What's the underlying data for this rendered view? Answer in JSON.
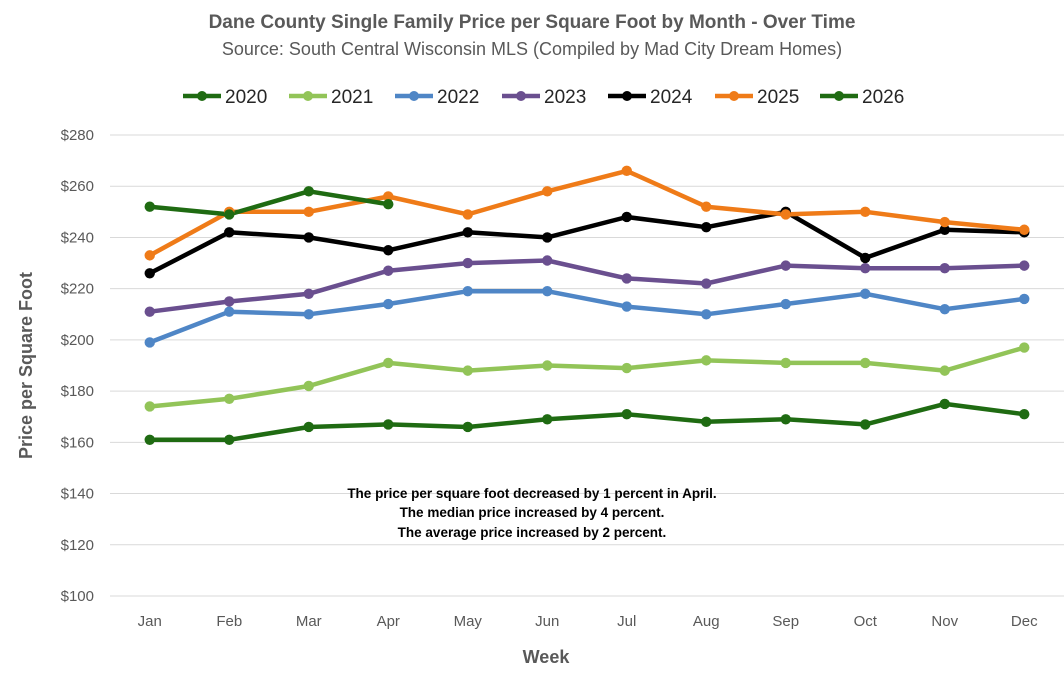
{
  "chart_data": {
    "type": "line",
    "title": "Dane County Single Family Price per Square Foot by Month - Over Time",
    "subtitle": "Source: South Central Wisconsin MLS (Compiled by Mad City Dream Homes)",
    "xlabel": "Week",
    "ylabel": "Price per Square Foot",
    "categories": [
      "Jan",
      "Feb",
      "Mar",
      "Apr",
      "May",
      "Jun",
      "Jul",
      "Aug",
      "Sep",
      "Oct",
      "Nov",
      "Dec"
    ],
    "ylim": [
      100,
      280
    ],
    "yticks": [
      100,
      120,
      140,
      160,
      180,
      200,
      220,
      240,
      260,
      280
    ],
    "ytick_labels": [
      "$100",
      "$120",
      "$140",
      "$160",
      "$180",
      "$200",
      "$220",
      "$240",
      "$260",
      "$280"
    ],
    "grid": true,
    "legend_position": "top",
    "series": [
      {
        "name": "2020",
        "color": "#1f6b12",
        "values": [
          161,
          161,
          166,
          167,
          166,
          169,
          171,
          168,
          169,
          167,
          175,
          171
        ]
      },
      {
        "name": "2021",
        "color": "#92c458",
        "values": [
          174,
          177,
          182,
          191,
          188,
          190,
          189,
          192,
          191,
          191,
          188,
          197
        ]
      },
      {
        "name": "2022",
        "color": "#4f86c6",
        "values": [
          199,
          211,
          210,
          214,
          219,
          219,
          213,
          210,
          214,
          218,
          212,
          216
        ]
      },
      {
        "name": "2023",
        "color": "#6a4f8f",
        "values": [
          211,
          215,
          218,
          227,
          230,
          231,
          224,
          222,
          229,
          228,
          228,
          229
        ]
      },
      {
        "name": "2024",
        "color": "#000000",
        "values": [
          226,
          242,
          240,
          235,
          242,
          240,
          248,
          244,
          250,
          232,
          243,
          242
        ]
      },
      {
        "name": "2025",
        "color": "#ef7b18",
        "values": [
          233,
          250,
          250,
          256,
          249,
          258,
          266,
          252,
          249,
          250,
          246,
          243
        ]
      },
      {
        "name": "2026",
        "color": "#1f6b12",
        "values": [
          252,
          249,
          258,
          253,
          null,
          null,
          null,
          null,
          null,
          null,
          null,
          null
        ]
      }
    ],
    "annotations": [
      "The price per square foot decreased by 1 percent in April.",
      "The median price increased by 4 percent.",
      "The average price increased by 2 percent."
    ]
  }
}
